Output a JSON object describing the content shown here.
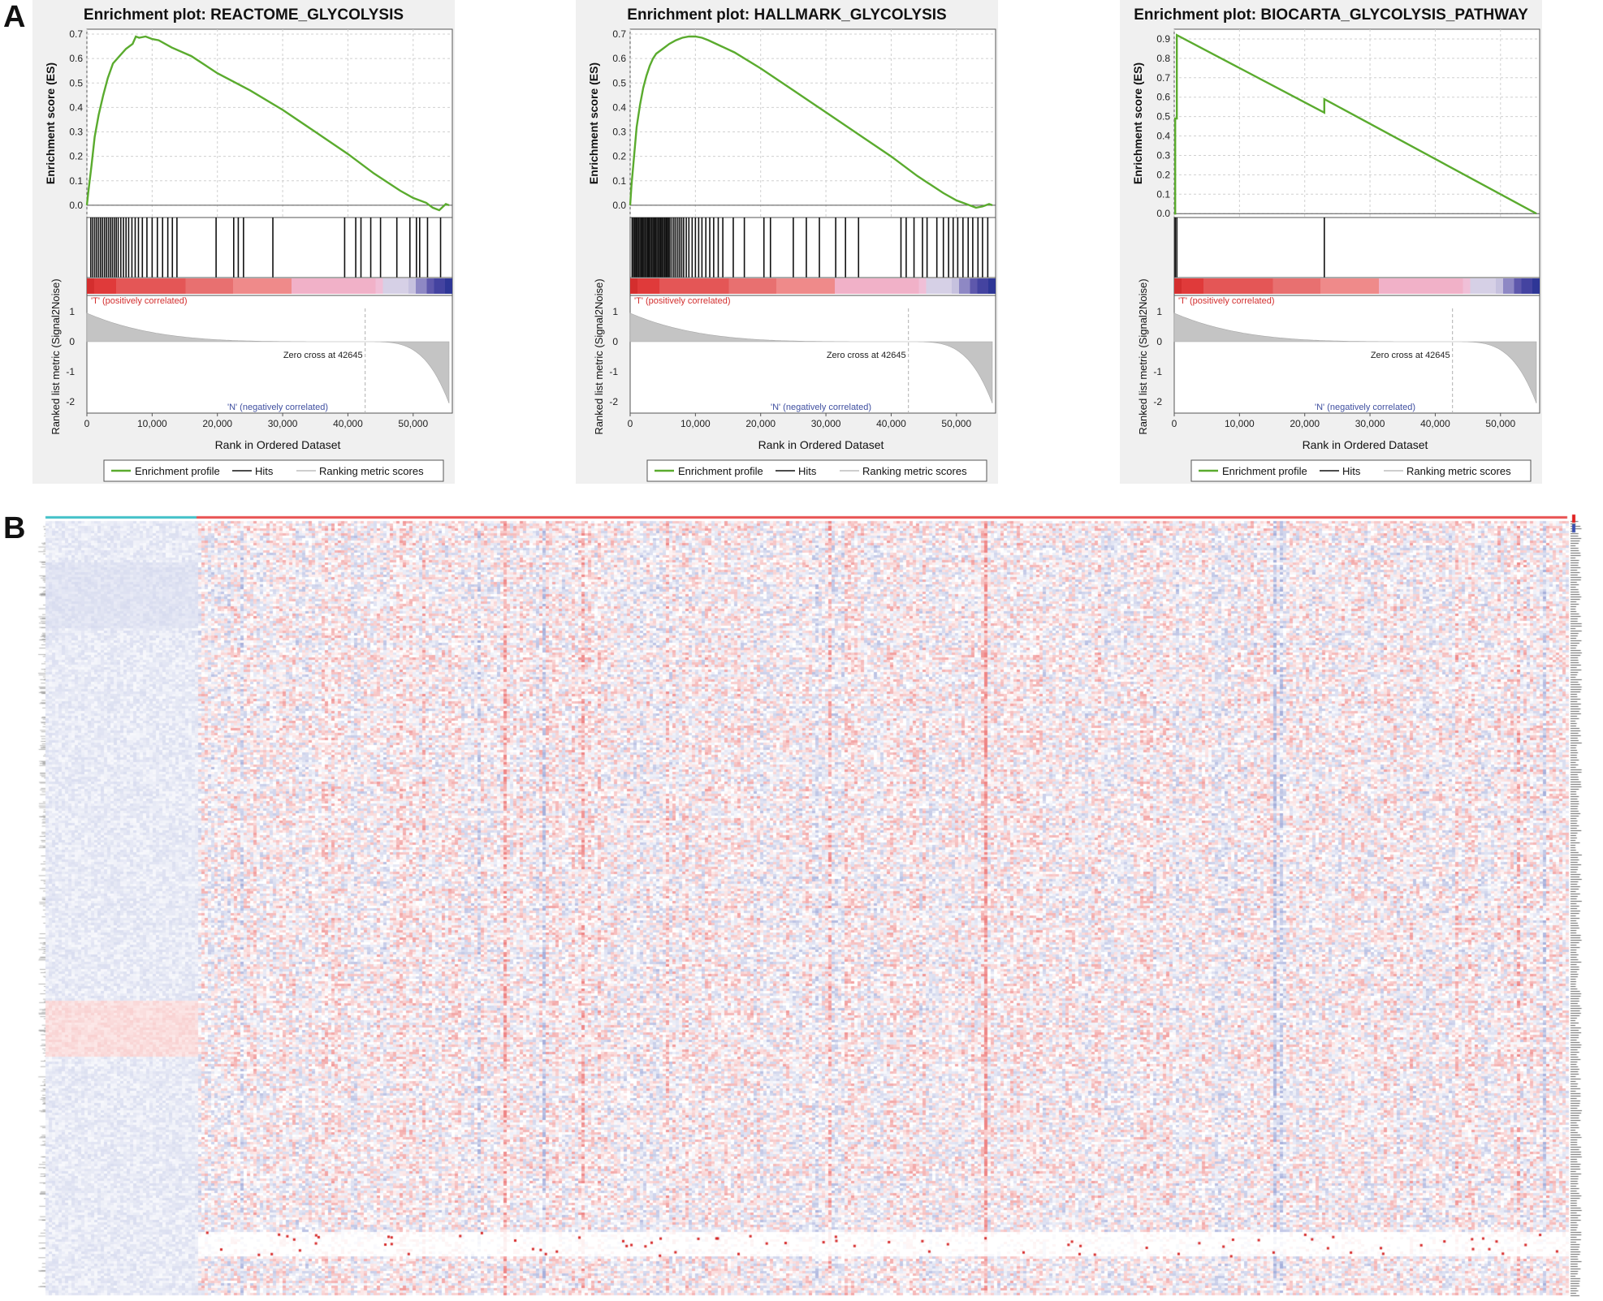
{
  "panel_labels": {
    "a": "A",
    "b": "B"
  },
  "colors": {
    "profile": "#5aab2e",
    "hits": "#111111",
    "metric_fill": "#c4c4c4",
    "pos_label": "#d32f2f",
    "neg_label": "#3f4fa0",
    "panel_bg": "#f0f0f0",
    "heat_pos": "#e02020",
    "heat_neg": "#3a4fb0",
    "group_ctrl": "#40c0c8",
    "group_case": "#e85050"
  },
  "legend": {
    "profile": "Enrichment profile",
    "hits": "Hits",
    "metric": "Ranking metric scores"
  },
  "chart_data": [
    {
      "type": "line",
      "title": "Enrichment plot: REACTOME_GLYCOLYSIS",
      "ylabel": "Enrichment score (ES)",
      "xlabel": "Rank in Ordered Dataset",
      "ylim": [
        -0.05,
        0.72
      ],
      "yticks": [
        "0.0",
        "0.1",
        "0.2",
        "0.3",
        "0.4",
        "0.5",
        "0.6",
        "0.7"
      ],
      "xlim": [
        0,
        56000
      ],
      "xticks": [
        "0",
        "10,000",
        "20,000",
        "30,000",
        "40,000",
        "50,000"
      ],
      "metric_ylabel": "Ranked list metric (Signal2Noise)",
      "metric_yticks": [
        "1",
        "0",
        "-1",
        "-2"
      ],
      "zero_cross_label": "Zero cross at 42645",
      "zero_cross": 42645,
      "total_rank": 55500,
      "pos_label": "'T' (positively correlated)",
      "neg_label": "'N' (negatively correlated)",
      "series": [
        {
          "name": "Enrichment profile",
          "x": [
            0,
            200,
            700,
            1200,
            1800,
            2500,
            3200,
            4000,
            5000,
            6000,
            7000,
            7500,
            8000,
            9000,
            10000,
            11000,
            13000,
            16000,
            20000,
            25000,
            30000,
            35000,
            40000,
            44000,
            48000,
            50000,
            52000,
            53000,
            54000,
            55000,
            55500
          ],
          "y": [
            0.0,
            0.05,
            0.16,
            0.28,
            0.37,
            0.45,
            0.52,
            0.58,
            0.61,
            0.64,
            0.66,
            0.69,
            0.685,
            0.69,
            0.68,
            0.675,
            0.645,
            0.61,
            0.54,
            0.47,
            0.39,
            0.3,
            0.21,
            0.13,
            0.06,
            0.03,
            0.01,
            -0.01,
            -0.02,
            0.005,
            0.0
          ]
        }
      ],
      "hits": [
        600,
        900,
        1200,
        1500,
        1800,
        2100,
        2400,
        2700,
        3000,
        3300,
        3600,
        3900,
        4200,
        4500,
        4800,
        5200,
        5600,
        6000,
        6400,
        6900,
        7400,
        7900,
        8500,
        9200,
        10000,
        10800,
        11600,
        12400,
        13100,
        13800,
        19800,
        22500,
        23200,
        24000,
        28500,
        39500,
        41200,
        42000,
        43500,
        45000,
        47500,
        49500,
        50500,
        51000,
        52200,
        54200
      ]
    },
    {
      "type": "line",
      "title": "Enrichment plot: HALLMARK_GLYCOLYSIS",
      "ylabel": "Enrichment score (ES)",
      "xlabel": "Rank in Ordered Dataset",
      "ylim": [
        -0.05,
        0.72
      ],
      "yticks": [
        "0.0",
        "0.1",
        "0.2",
        "0.3",
        "0.4",
        "0.5",
        "0.6",
        "0.7"
      ],
      "xlim": [
        0,
        56000
      ],
      "xticks": [
        "0",
        "10,000",
        "20,000",
        "30,000",
        "40,000",
        "50,000"
      ],
      "metric_ylabel": "Ranked list metric (Signal2Noise)",
      "metric_yticks": [
        "1",
        "0",
        "-1",
        "-2"
      ],
      "zero_cross_label": "Zero cross at 42645",
      "zero_cross": 42645,
      "total_rank": 55500,
      "pos_label": "'T' (positively correlated)",
      "neg_label": "'N' (negatively correlated)",
      "series": [
        {
          "name": "Enrichment profile",
          "x": [
            0,
            200,
            600,
            1000,
            1500,
            2000,
            2500,
            3000,
            3500,
            4000,
            5000,
            6000,
            7000,
            8000,
            9000,
            10000,
            11000,
            12000,
            14000,
            16000,
            20000,
            25000,
            30000,
            35000,
            40000,
            44000,
            48000,
            50000,
            52000,
            53000,
            54000,
            55000,
            55500
          ],
          "y": [
            0.0,
            0.08,
            0.2,
            0.32,
            0.41,
            0.48,
            0.53,
            0.57,
            0.6,
            0.62,
            0.64,
            0.66,
            0.675,
            0.685,
            0.69,
            0.69,
            0.685,
            0.675,
            0.65,
            0.625,
            0.56,
            0.47,
            0.38,
            0.29,
            0.2,
            0.12,
            0.05,
            0.02,
            0.0,
            -0.01,
            -0.005,
            0.005,
            0.0
          ]
        }
      ],
      "hits": [
        300,
        500,
        700,
        900,
        1100,
        1300,
        1500,
        1700,
        1900,
        2100,
        2300,
        2500,
        2700,
        2900,
        3100,
        3300,
        3500,
        3700,
        3900,
        4100,
        4300,
        4500,
        4700,
        4900,
        5100,
        5300,
        5500,
        5700,
        5900,
        6100,
        6400,
        6700,
        7000,
        7300,
        7600,
        7900,
        8200,
        8600,
        9000,
        9500,
        10000,
        10500,
        11000,
        11600,
        12200,
        12800,
        13500,
        14200,
        15800,
        17500,
        20500,
        21500,
        25000,
        27000,
        29000,
        31500,
        33000,
        35000,
        41500,
        42300,
        43500,
        44800,
        45500,
        47000,
        48000,
        48800,
        49500,
        50200,
        51000,
        51800,
        52500,
        53300,
        54000,
        54800
      ]
    },
    {
      "type": "line",
      "title": "Enrichment plot: BIOCARTA_GLYCOLYSIS_PATHWAY",
      "ylabel": "Enrichment score (ES)",
      "xlabel": "Rank in Ordered Dataset",
      "ylim": [
        -0.02,
        0.95
      ],
      "yticks": [
        "0.0",
        "0.1",
        "0.2",
        "0.3",
        "0.4",
        "0.5",
        "0.6",
        "0.7",
        "0.8",
        "0.9"
      ],
      "xlim": [
        0,
        56000
      ],
      "xticks": [
        "0",
        "10,000",
        "20,000",
        "30,000",
        "40,000",
        "50,000"
      ],
      "metric_ylabel": "Ranked list metric (Signal2Noise)",
      "metric_yticks": [
        "1",
        "0",
        "-1",
        "-2"
      ],
      "zero_cross_label": "Zero cross at 42645",
      "zero_cross": 42645,
      "total_rank": 55500,
      "pos_label": "'T' (positively correlated)",
      "neg_label": "'N' (negatively correlated)",
      "series": [
        {
          "name": "Enrichment profile",
          "x": [
            0,
            150,
            150,
            400,
            400,
            23000,
            23000,
            55500
          ],
          "y": [
            0.0,
            0.0,
            0.49,
            0.49,
            0.92,
            0.52,
            0.59,
            0.0
          ]
        }
      ],
      "hits": [
        150,
        400,
        23000
      ]
    }
  ]
}
